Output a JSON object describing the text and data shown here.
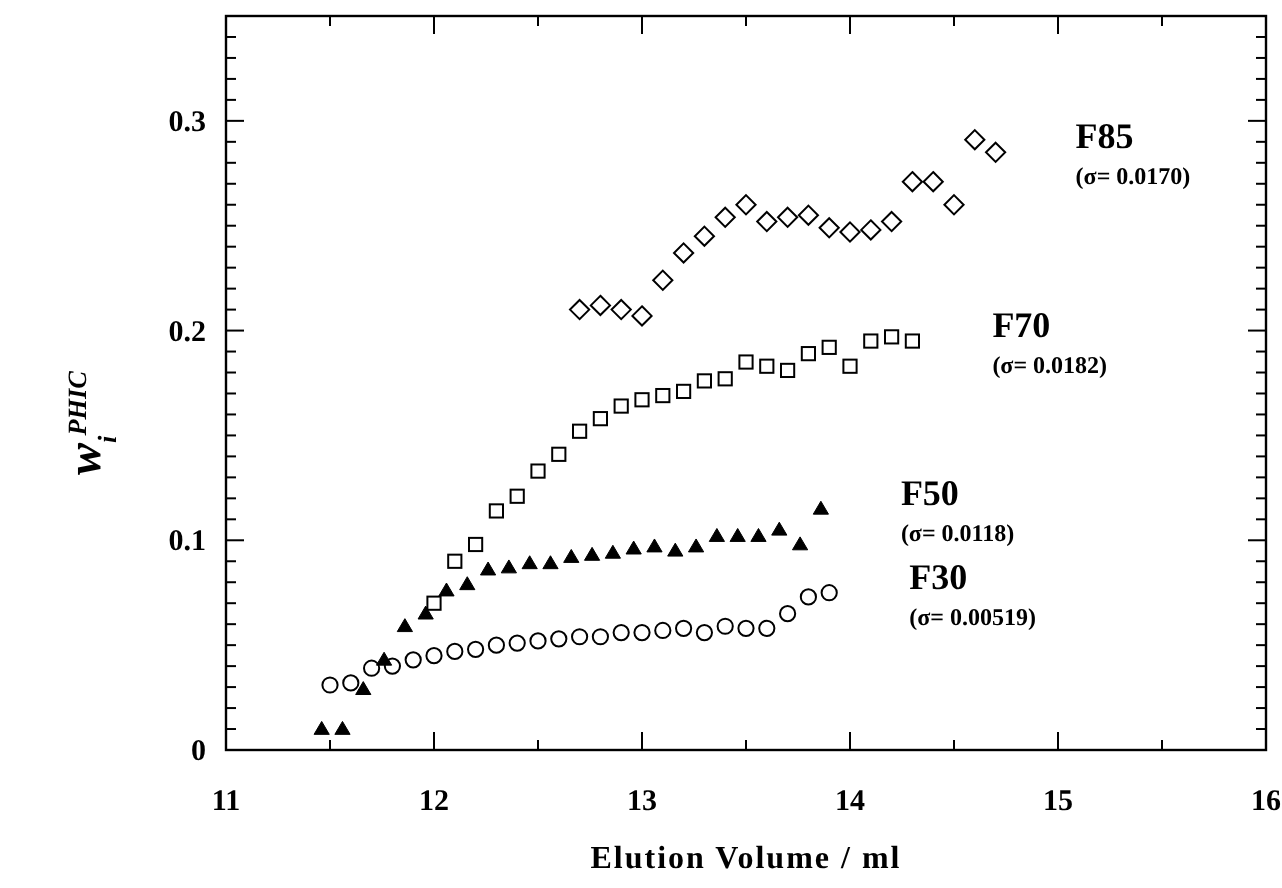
{
  "chart_data": {
    "type": "scatter",
    "xlabel": "Elution Volume  /  ml",
    "ylabel": "w$_{i}$$^{PHIC}$",
    "xlim": [
      11,
      16
    ],
    "ylim": [
      0,
      0.35
    ],
    "xticks": [
      11,
      {
        "value": 11.5,
        "label": null
      },
      12,
      {
        "value": 12.5,
        "label": null
      },
      13,
      {
        "value": 13.5,
        "label": null
      },
      14,
      {
        "value": 14.5,
        "label": null
      },
      15,
      {
        "value": 15.5,
        "label": null
      },
      16
    ],
    "yticks": [
      0,
      {
        "value": 0.01,
        "label": null
      },
      {
        "value": 0.02,
        "label": null
      },
      {
        "value": 0.03,
        "label": null
      },
      {
        "value": 0.04,
        "label": null
      },
      {
        "value": 0.05,
        "label": null
      },
      {
        "value": 0.06,
        "label": null
      },
      {
        "value": 0.07,
        "label": null
      },
      {
        "value": 0.08,
        "label": null
      },
      {
        "value": 0.09,
        "label": null
      },
      {
        "value": 0.1,
        "label": "0.1"
      },
      {
        "value": 0.11,
        "label": null
      },
      {
        "value": 0.12,
        "label": null
      },
      {
        "value": 0.13,
        "label": null
      },
      {
        "value": 0.14,
        "label": null
      },
      {
        "value": 0.15,
        "label": null
      },
      {
        "value": 0.16,
        "label": null
      },
      {
        "value": 0.17,
        "label": null
      },
      {
        "value": 0.18,
        "label": null
      },
      {
        "value": 0.19,
        "label": null
      },
      {
        "value": 0.2,
        "label": "0.2"
      },
      {
        "value": 0.21,
        "label": null
      },
      {
        "value": 0.22,
        "label": null
      },
      {
        "value": 0.23,
        "label": null
      },
      {
        "value": 0.24,
        "label": null
      },
      {
        "value": 0.25,
        "label": null
      },
      {
        "value": 0.26,
        "label": null
      },
      {
        "value": 0.27,
        "label": null
      },
      {
        "value": 0.28,
        "label": null
      },
      {
        "value": 0.29,
        "label": null
      },
      {
        "value": 0.3,
        "label": "0.3"
      },
      {
        "value": 0.31,
        "label": null
      },
      {
        "value": 0.32,
        "label": null
      },
      {
        "value": 0.33,
        "label": null
      },
      {
        "value": 0.34,
        "label": null
      },
      {
        "value": 0.35,
        "label": null
      }
    ],
    "grid": false,
    "series": [
      {
        "name": "F85",
        "color": "#000000",
        "marker": "diamond",
        "x": [
          12.7,
          12.8,
          12.9,
          13.0,
          13.1,
          13.2,
          13.3,
          13.4,
          13.5,
          13.6,
          13.7,
          13.8,
          13.9,
          14.0,
          14.1,
          14.2,
          14.3,
          14.4,
          14.5,
          14.6,
          14.7
        ],
        "values": [
          0.21,
          0.212,
          0.21,
          0.207,
          0.224,
          0.237,
          0.245,
          0.254,
          0.26,
          0.252,
          0.254,
          0.255,
          0.249,
          0.247,
          0.248,
          0.252,
          0.271,
          0.271,
          0.26,
          0.291,
          0.285
        ]
      },
      {
        "name": "F70",
        "color": "#000000",
        "marker": "square",
        "x": [
          12.0,
          12.1,
          12.2,
          12.3,
          12.4,
          12.5,
          12.6,
          12.7,
          12.8,
          12.9,
          13.0,
          13.1,
          13.2,
          13.3,
          13.4,
          13.5,
          13.6,
          13.7,
          13.8,
          13.9,
          14.0,
          14.1,
          14.2,
          14.3
        ],
        "values": [
          0.07,
          0.09,
          0.098,
          0.114,
          0.121,
          0.133,
          0.141,
          0.152,
          0.158,
          0.164,
          0.167,
          0.169,
          0.171,
          0.176,
          0.177,
          0.185,
          0.183,
          0.181,
          0.189,
          0.192,
          0.183,
          0.195,
          0.197,
          0.195
        ]
      },
      {
        "name": "F50",
        "color": "#000000",
        "marker": "triangle",
        "x": [
          11.46,
          11.56,
          11.66,
          11.76,
          11.86,
          11.96,
          12.06,
          12.16,
          12.26,
          12.36,
          12.46,
          12.56,
          12.66,
          12.76,
          12.86,
          12.96,
          13.06,
          13.16,
          13.26,
          13.36,
          13.46,
          13.56,
          13.66,
          13.76,
          13.86
        ],
        "values": [
          0.01,
          0.01,
          0.029,
          0.043,
          0.059,
          0.065,
          0.076,
          0.079,
          0.086,
          0.087,
          0.089,
          0.089,
          0.092,
          0.093,
          0.094,
          0.096,
          0.097,
          0.095,
          0.097,
          0.102,
          0.102,
          0.102,
          0.105,
          0.098,
          0.115
        ]
      },
      {
        "name": "F30",
        "color": "#000000",
        "marker": "circle",
        "x": [
          11.5,
          11.6,
          11.7,
          11.8,
          11.9,
          12.0,
          12.1,
          12.2,
          12.3,
          12.4,
          12.5,
          12.6,
          12.7,
          12.8,
          12.9,
          13.0,
          13.1,
          13.2,
          13.3,
          13.4,
          13.5,
          13.6,
          13.7,
          13.8,
          13.9
        ],
        "values": [
          0.031,
          0.032,
          0.039,
          0.04,
          0.043,
          0.045,
          0.047,
          0.048,
          0.05,
          0.051,
          0.052,
          0.053,
          0.054,
          0.054,
          0.056,
          0.056,
          0.057,
          0.058,
          0.056,
          0.059,
          0.058,
          0.058,
          0.065,
          0.073,
          0.075
        ]
      }
    ],
    "annotations": [
      "(σ= 0.0170)",
      "(σ= 0.0182)",
      "(σ= 0.0118)",
      "(σ= 0.00519)"
    ]
  }
}
